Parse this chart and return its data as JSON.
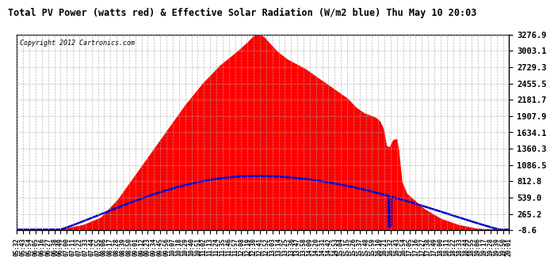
{
  "title": "Total PV Power (watts red) & Effective Solar Radiation (W/m2 blue) Thu May 10 20:03",
  "copyright": "Copyright 2012 Cartronics.com",
  "background_color": "#ffffff",
  "plot_bg_color": "#ffffff",
  "yticks": [
    3276.9,
    3003.1,
    2729.3,
    2455.5,
    2181.7,
    1907.9,
    1634.1,
    1360.3,
    1086.5,
    812.8,
    539.0,
    265.2,
    -8.6
  ],
  "ymin": -8.6,
  "ymax": 3276.9,
  "grid_color": "#aaaaaa",
  "red_color": "#ff0000",
  "blue_color": "#0000cc",
  "title_color": "#000000",
  "tick_label_color": "#000000",
  "start_hour": 5.5333,
  "end_hour": 20.0167,
  "x_start_min": 332,
  "x_end_min": 1201,
  "x_step_min": 11,
  "blue_peak": 900,
  "blue_start_hour": 6.8,
  "blue_end_hour": 19.75,
  "blue_peak_hour": 12.55,
  "red_data": [
    [
      5.533,
      0
    ],
    [
      6.5,
      0
    ],
    [
      7.0,
      20
    ],
    [
      7.5,
      80
    ],
    [
      8.0,
      200
    ],
    [
      8.5,
      500
    ],
    [
      9.0,
      900
    ],
    [
      9.5,
      1300
    ],
    [
      10.0,
      1700
    ],
    [
      10.5,
      2100
    ],
    [
      11.0,
      2450
    ],
    [
      11.5,
      2750
    ],
    [
      12.0,
      2980
    ],
    [
      12.33,
      3150
    ],
    [
      12.5,
      3250
    ],
    [
      12.65,
      3276.9
    ],
    [
      12.8,
      3230
    ],
    [
      13.0,
      3100
    ],
    [
      13.2,
      2980
    ],
    [
      13.5,
      2850
    ],
    [
      14.0,
      2700
    ],
    [
      14.5,
      2500
    ],
    [
      15.0,
      2300
    ],
    [
      15.25,
      2200
    ],
    [
      15.5,
      2050
    ],
    [
      15.75,
      1950
    ],
    [
      16.0,
      1900
    ],
    [
      16.1,
      1870
    ],
    [
      16.2,
      1820
    ],
    [
      16.3,
      1700
    ],
    [
      16.4,
      1400
    ],
    [
      16.5,
      1380
    ],
    [
      16.6,
      1500
    ],
    [
      16.7,
      1520
    ],
    [
      16.75,
      1350
    ],
    [
      16.85,
      800
    ],
    [
      17.0,
      600
    ],
    [
      17.5,
      350
    ],
    [
      18.0,
      180
    ],
    [
      18.5,
      80
    ],
    [
      19.0,
      20
    ],
    [
      19.3,
      5
    ],
    [
      19.5,
      0
    ],
    [
      20.017,
      0
    ]
  ]
}
